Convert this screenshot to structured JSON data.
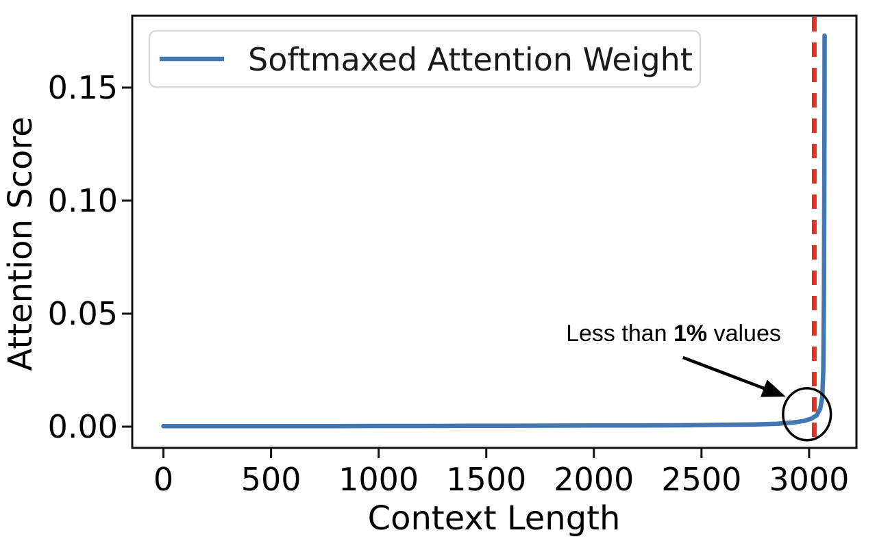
{
  "figure": {
    "background": "#ffffff"
  },
  "chart_data": {
    "type": "line",
    "title": "",
    "xlabel": "Context Length",
    "ylabel": "Attention Score",
    "xlim": [
      -145,
      3220
    ],
    "ylim": [
      -0.0094,
      0.1818
    ],
    "grid": false,
    "x_ticks": {
      "values": [
        0,
        500,
        1000,
        1500,
        2000,
        2500,
        3000
      ],
      "labels": [
        "0",
        "500",
        "1000",
        "1500",
        "2000",
        "2500",
        "3000"
      ]
    },
    "y_ticks": {
      "values": [
        0.0,
        0.05,
        0.1,
        0.15
      ],
      "labels": [
        "0.00",
        "0.05",
        "0.10",
        "0.15"
      ]
    },
    "legend": {
      "location": "upper left",
      "entries": [
        {
          "label": "Softmaxed Attention Weight",
          "color": "#4377b2"
        }
      ]
    },
    "series": [
      {
        "name": "Softmaxed Attention Weight",
        "color": "#4377b2",
        "linewidth": 6.5,
        "x": [
          0,
          200,
          400,
          600,
          800,
          1000,
          1200,
          1400,
          1600,
          1800,
          2000,
          2200,
          2400,
          2600,
          2750,
          2850,
          2925,
          2975,
          3010,
          3035,
          3052,
          3061,
          3066,
          3069,
          3071,
          3072
        ],
        "y": [
          0.0002,
          0.0002,
          0.0002,
          0.00025,
          0.00025,
          0.0003,
          0.0003,
          0.00035,
          0.0004,
          0.00045,
          0.0005,
          0.00055,
          0.0006,
          0.0008,
          0.001,
          0.0013,
          0.0018,
          0.0025,
          0.0035,
          0.005,
          0.008,
          0.013,
          0.025,
          0.06,
          0.115,
          0.173
        ]
      }
    ],
    "reference_line": {
      "orientation": "vertical",
      "x": 3024,
      "color": "#e8311f",
      "linestyle": "dashed",
      "linewidth": 7
    },
    "annotation": {
      "text_before": "Less than ",
      "text_bold": "1%",
      "text_after": " values",
      "text_x": 2370,
      "text_y": 0.0379,
      "arrow": {
        "x1": 2414,
        "y1": 0.0306,
        "x2": 2891,
        "y2": 0.0133,
        "color": "#000000"
      },
      "ellipse": {
        "cx": 2990,
        "cy": 0.0055,
        "rx": 111,
        "ry": 0.0115,
        "color": "#000000"
      }
    },
    "colors": {
      "axis": "#111111",
      "text": "#000000"
    }
  }
}
